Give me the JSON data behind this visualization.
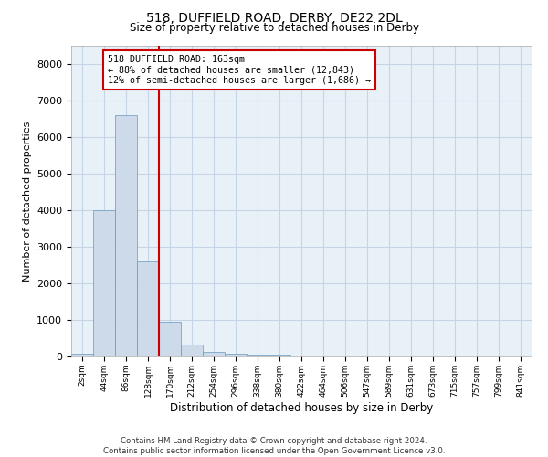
{
  "title": "518, DUFFIELD ROAD, DERBY, DE22 2DL",
  "subtitle": "Size of property relative to detached houses in Derby",
  "xlabel": "Distribution of detached houses by size in Derby",
  "ylabel": "Number of detached properties",
  "footnote1": "Contains HM Land Registry data © Crown copyright and database right 2024.",
  "footnote2": "Contains public sector information licensed under the Open Government Licence v3.0.",
  "bar_labels": [
    "2sqm",
    "44sqm",
    "86sqm",
    "128sqm",
    "170sqm",
    "212sqm",
    "254sqm",
    "296sqm",
    "338sqm",
    "380sqm",
    "422sqm",
    "464sqm",
    "506sqm",
    "547sqm",
    "589sqm",
    "631sqm",
    "673sqm",
    "715sqm",
    "757sqm",
    "799sqm",
    "841sqm"
  ],
  "bar_values": [
    80,
    4000,
    6600,
    2600,
    950,
    320,
    130,
    80,
    60,
    60,
    0,
    0,
    0,
    0,
    0,
    0,
    0,
    0,
    0,
    0,
    0
  ],
  "bar_color": "#ccdaea",
  "bar_edge_color": "#6699bb",
  "grid_color": "#c5d5e5",
  "background_color": "#e8f0f8",
  "vline_color": "#cc0000",
  "annotation_text": "518 DUFFIELD ROAD: 163sqm\n← 88% of detached houses are smaller (12,843)\n12% of semi-detached houses are larger (1,686) →",
  "annotation_box_color": "#cc0000",
  "ylim": [
    0,
    8500
  ],
  "yticks": [
    0,
    1000,
    2000,
    3000,
    4000,
    5000,
    6000,
    7000,
    8000
  ],
  "title_fontsize": 10,
  "subtitle_fontsize": 9
}
